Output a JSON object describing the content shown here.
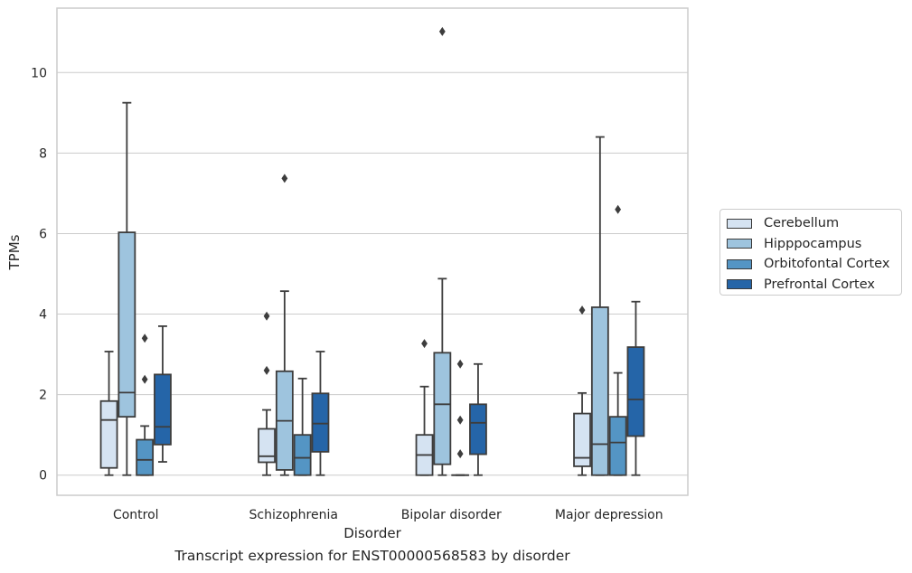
{
  "chart_data": {
    "type": "box",
    "xlabel": "Disorder",
    "ylabel": "TPMs",
    "caption": "Transcript expression for ENST00000568583 by disorder",
    "ylim": [
      -0.5,
      11.6
    ],
    "yticks": [
      0,
      2,
      4,
      6,
      8,
      10
    ],
    "grid": "horizontal",
    "legend_position": "right",
    "categories": [
      "Control",
      "Schizophrenia",
      "Bipolar disorder",
      "Major depression"
    ],
    "series": [
      {
        "name": "Cerebellum",
        "color": "#d5e3f2",
        "boxes": [
          {
            "whislo": 0.0,
            "q1": 0.18,
            "med": 1.37,
            "q3": 1.84,
            "whishi": 3.07,
            "fliers": []
          },
          {
            "whislo": 0.0,
            "q1": 0.32,
            "med": 0.47,
            "q3": 1.15,
            "whishi": 1.62,
            "fliers": [
              2.6,
              3.95
            ]
          },
          {
            "whislo": 0.0,
            "q1": 0.0,
            "med": 0.5,
            "q3": 1.0,
            "whishi": 2.2,
            "fliers": [
              3.27
            ]
          },
          {
            "whislo": 0.0,
            "q1": 0.22,
            "med": 0.43,
            "q3": 1.53,
            "whishi": 2.04,
            "fliers": [
              4.1
            ]
          }
        ]
      },
      {
        "name": "Hipppocampus",
        "color": "#9ec4de",
        "boxes": [
          {
            "whislo": 0.0,
            "q1": 1.45,
            "med": 2.05,
            "q3": 6.03,
            "whishi": 9.25,
            "fliers": []
          },
          {
            "whislo": 0.0,
            "q1": 0.13,
            "med": 1.35,
            "q3": 2.58,
            "whishi": 4.57,
            "fliers": [
              7.37
            ]
          },
          {
            "whislo": 0.0,
            "q1": 0.27,
            "med": 1.76,
            "q3": 3.04,
            "whishi": 4.88,
            "fliers": [
              11.02
            ]
          },
          {
            "whislo": 0.0,
            "q1": 0.0,
            "med": 0.77,
            "q3": 4.17,
            "whishi": 8.4,
            "fliers": []
          }
        ]
      },
      {
        "name": "Orbitofontal Cortex",
        "color": "#5495c4",
        "boxes": [
          {
            "whislo": 0.0,
            "q1": 0.0,
            "med": 0.38,
            "q3": 0.88,
            "whishi": 1.22,
            "fliers": [
              2.38,
              3.4
            ]
          },
          {
            "whislo": 0.0,
            "q1": 0.0,
            "med": 0.43,
            "q3": 1.0,
            "whishi": 2.4,
            "fliers": []
          },
          {
            "whislo": 0.0,
            "q1": 0.0,
            "med": 0.0,
            "q3": 0.0,
            "whishi": 0.0,
            "fliers": [
              0.53,
              1.37,
              2.76
            ]
          },
          {
            "whislo": 0.0,
            "q1": 0.0,
            "med": 0.81,
            "q3": 1.45,
            "whishi": 2.54,
            "fliers": [
              6.6
            ]
          }
        ]
      },
      {
        "name": "Prefrontal Cortex",
        "color": "#2565a8",
        "boxes": [
          {
            "whislo": 0.33,
            "q1": 0.76,
            "med": 1.2,
            "q3": 2.5,
            "whishi": 3.7,
            "fliers": []
          },
          {
            "whislo": 0.0,
            "q1": 0.58,
            "med": 1.28,
            "q3": 2.03,
            "whishi": 3.07,
            "fliers": []
          },
          {
            "whislo": 0.0,
            "q1": 0.52,
            "med": 1.3,
            "q3": 1.76,
            "whishi": 2.76,
            "fliers": []
          },
          {
            "whislo": 0.0,
            "q1": 0.97,
            "med": 1.88,
            "q3": 3.18,
            "whishi": 4.31,
            "fliers": []
          }
        ]
      }
    ]
  }
}
